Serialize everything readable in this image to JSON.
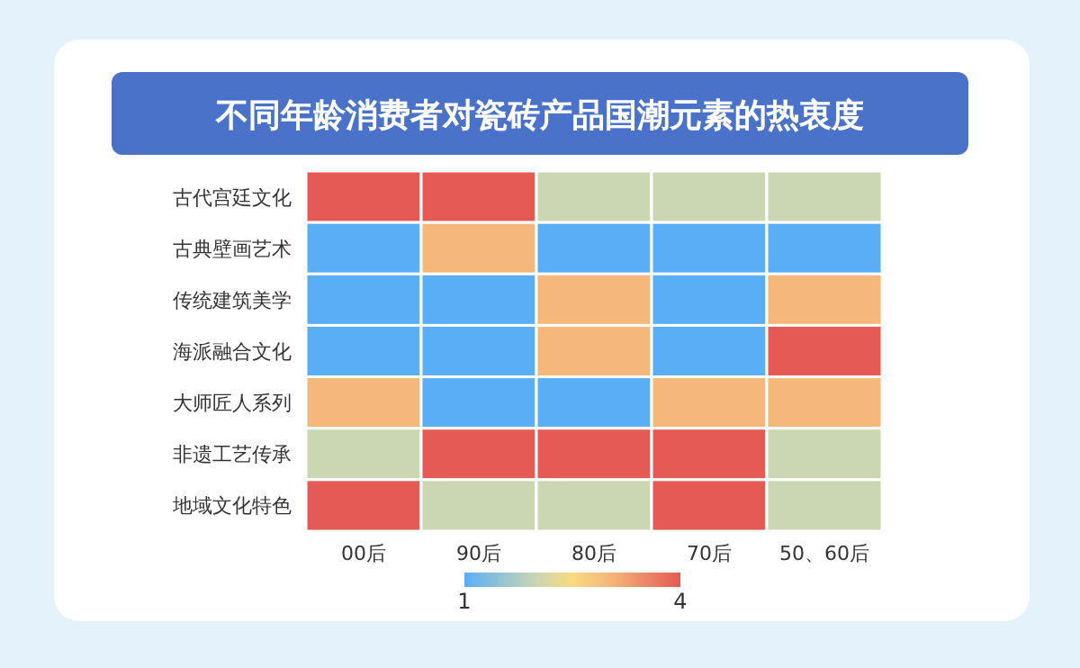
{
  "chart_data": {
    "type": "heatmap",
    "title": "不同年龄消费者对瓷砖产品国潮元素的热衷度",
    "categories": [
      "00后",
      "90后",
      "80后",
      "70后",
      "50、60后"
    ],
    "y_categories": [
      "古代宫廷文化",
      "古典壁画艺术",
      "传统建筑美学",
      "海派融合文化",
      "大师匠人系列",
      "非遗工艺传承",
      "地域文化特色"
    ],
    "cells": [
      [
        4,
        4,
        2,
        2,
        2
      ],
      [
        1,
        3,
        1,
        1,
        1
      ],
      [
        1,
        1,
        3,
        1,
        3
      ],
      [
        1,
        1,
        3,
        1,
        4
      ],
      [
        3,
        1,
        1,
        3,
        3
      ],
      [
        2,
        4,
        4,
        4,
        2
      ],
      [
        4,
        2,
        2,
        4,
        2
      ]
    ],
    "clim": [
      1,
      4
    ],
    "cticks": [
      {
        "value": 1,
        "label": "1"
      },
      {
        "value": 4,
        "label": "4"
      }
    ]
  }
}
